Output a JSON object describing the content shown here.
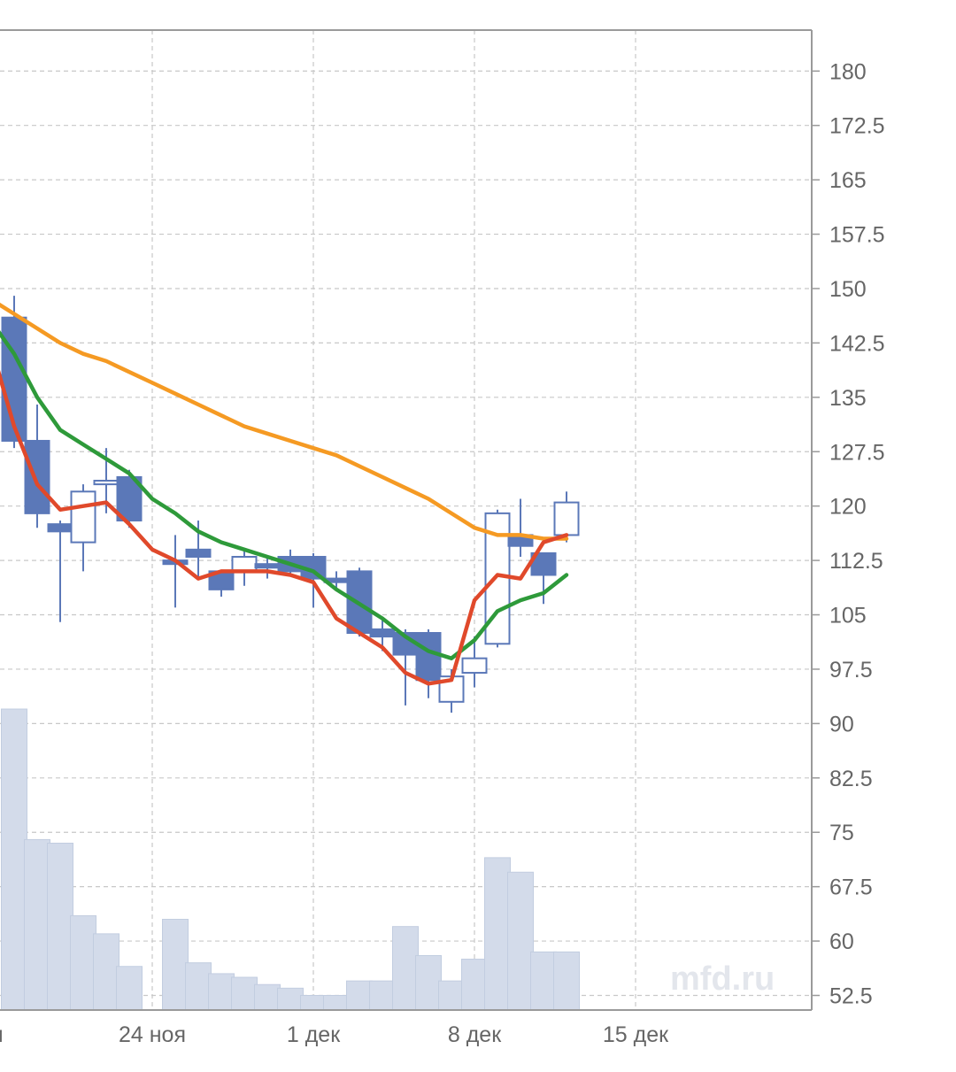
{
  "chart_data": {
    "type": "candlestick",
    "y_ticks": [
      "180",
      "172.5",
      "165",
      "157.5",
      "150",
      "142.5",
      "135",
      "127.5",
      "120",
      "112.5",
      "105",
      "97.5",
      "90",
      "82.5",
      "75",
      "67.5",
      "60",
      "52.5"
    ],
    "y_tick_values": [
      180,
      172.5,
      165,
      157.5,
      150,
      142.5,
      135,
      127.5,
      120,
      112.5,
      105,
      97.5,
      90,
      82.5,
      75,
      67.5,
      60,
      52.5
    ],
    "ylim": [
      51,
      186
    ],
    "x_ticks": [
      "оя",
      "24 ноя",
      "1 дек",
      "8 дек",
      "15 дек"
    ],
    "x_tick_days": [
      -7,
      0,
      7,
      14,
      21
    ],
    "grid": true,
    "watermark": "mfd.ru",
    "candles": [
      {
        "day": -6,
        "open": 146,
        "close": 129,
        "high": 149,
        "low": 128
      },
      {
        "day": -5,
        "open": 129,
        "close": 119,
        "high": 134,
        "low": 117
      },
      {
        "day": -4,
        "open": 117.5,
        "close": 116.5,
        "high": 118,
        "low": 104
      },
      {
        "day": -3,
        "open": 115,
        "close": 122,
        "high": 123,
        "low": 111
      },
      {
        "day": -2,
        "open": 123,
        "close": 123.5,
        "high": 128,
        "low": 119
      },
      {
        "day": -1,
        "open": 124,
        "close": 118,
        "high": 125,
        "low": 117
      },
      {
        "day": 1,
        "open": 112.5,
        "close": 112,
        "high": 116,
        "low": 106
      },
      {
        "day": 2,
        "open": 114,
        "close": 113,
        "high": 118,
        "low": 110
      },
      {
        "day": 3,
        "open": 111,
        "close": 108.5,
        "high": 111,
        "low": 107.5
      },
      {
        "day": 4,
        "open": 111,
        "close": 113,
        "high": 114,
        "low": 109
      },
      {
        "day": 5,
        "open": 112,
        "close": 111.5,
        "high": 113,
        "low": 110
      },
      {
        "day": 6,
        "open": 113,
        "close": 111,
        "high": 114,
        "low": 110.5
      },
      {
        "day": 7,
        "open": 113,
        "close": 110,
        "high": 113.5,
        "low": 106
      },
      {
        "day": 8,
        "open": 110,
        "close": 109.5,
        "high": 111,
        "low": 108.5
      },
      {
        "day": 9,
        "open": 111,
        "close": 102.5,
        "high": 111.5,
        "low": 102
      },
      {
        "day": 10,
        "open": 103,
        "close": 102,
        "high": 104.5,
        "low": 100
      },
      {
        "day": 11,
        "open": 102.5,
        "close": 99.5,
        "high": 103,
        "low": 92.5
      },
      {
        "day": 12,
        "open": 102.5,
        "close": 96,
        "high": 103,
        "low": 93.5
      },
      {
        "day": 13,
        "open": 93,
        "close": 96.5,
        "high": 97.5,
        "low": 91.5
      },
      {
        "day": 14,
        "open": 97,
        "close": 99,
        "high": 102,
        "low": 95
      },
      {
        "day": 15,
        "open": 101,
        "close": 119,
        "high": 119.5,
        "low": 100.5
      },
      {
        "day": 16,
        "open": 116,
        "close": 114.5,
        "high": 121,
        "low": 113
      },
      {
        "day": 17,
        "open": 113.5,
        "close": 110.5,
        "high": 113.5,
        "low": 106.5
      },
      {
        "day": 18,
        "open": 116,
        "close": 120.5,
        "high": 122,
        "low": 115
      }
    ],
    "volume": [
      {
        "day": -6,
        "value": 92
      },
      {
        "day": -5,
        "value": 74
      },
      {
        "day": -4,
        "value": 73.5
      },
      {
        "day": -3,
        "value": 63.5
      },
      {
        "day": -2,
        "value": 61
      },
      {
        "day": -1,
        "value": 56.5
      },
      {
        "day": 1,
        "value": 63
      },
      {
        "day": 2,
        "value": 57
      },
      {
        "day": 3,
        "value": 55.5
      },
      {
        "day": 4,
        "value": 55
      },
      {
        "day": 5,
        "value": 54
      },
      {
        "day": 6,
        "value": 53.5
      },
      {
        "day": 7,
        "value": 52.5
      },
      {
        "day": 8,
        "value": 52.5
      },
      {
        "day": 9,
        "value": 54.5
      },
      {
        "day": 10,
        "value": 54.5
      },
      {
        "day": 11,
        "value": 62
      },
      {
        "day": 12,
        "value": 58
      },
      {
        "day": 13,
        "value": 54.5
      },
      {
        "day": 14,
        "value": 57.5
      },
      {
        "day": 15,
        "value": 71.5
      },
      {
        "day": 16,
        "value": 69.5
      },
      {
        "day": 17,
        "value": 58.5
      },
      {
        "day": 18,
        "value": 58.5
      }
    ],
    "series": [
      {
        "color": "#f59a23",
        "points": [
          [
            -7,
            148.5
          ],
          [
            -6,
            146.5
          ],
          [
            -5,
            144.5
          ],
          [
            -4,
            142.5
          ],
          [
            -3,
            141
          ],
          [
            -2,
            140
          ],
          [
            -1,
            138.5
          ],
          [
            0,
            137
          ],
          [
            1,
            135.5
          ],
          [
            2,
            134
          ],
          [
            3,
            132.5
          ],
          [
            4,
            131
          ],
          [
            5,
            130
          ],
          [
            6,
            129
          ],
          [
            7,
            128
          ],
          [
            8,
            127
          ],
          [
            9,
            125.5
          ],
          [
            10,
            124
          ],
          [
            11,
            122.5
          ],
          [
            12,
            121
          ],
          [
            13,
            119
          ],
          [
            14,
            117
          ],
          [
            15,
            116
          ],
          [
            16,
            116
          ],
          [
            17,
            115.5
          ],
          [
            18,
            115.5
          ]
        ]
      },
      {
        "color": "#2e9a3a",
        "points": [
          [
            -7,
            145.5
          ],
          [
            -6,
            141
          ],
          [
            -5,
            135
          ],
          [
            -4,
            130.5
          ],
          [
            -3,
            128.5
          ],
          [
            -2,
            126.5
          ],
          [
            -1,
            124.5
          ],
          [
            0,
            121
          ],
          [
            1,
            119
          ],
          [
            2,
            116.5
          ],
          [
            3,
            115
          ],
          [
            4,
            114
          ],
          [
            5,
            113
          ],
          [
            6,
            112
          ],
          [
            7,
            111
          ],
          [
            8,
            108.5
          ],
          [
            9,
            106.5
          ],
          [
            10,
            104.5
          ],
          [
            11,
            102
          ],
          [
            12,
            100
          ],
          [
            13,
            99
          ],
          [
            14,
            101.5
          ],
          [
            15,
            105.5
          ],
          [
            16,
            107
          ],
          [
            17,
            108
          ],
          [
            18,
            110.5
          ]
        ]
      },
      {
        "color": "#e0492b",
        "points": [
          [
            -7,
            142
          ],
          [
            -6,
            131
          ],
          [
            -5,
            123
          ],
          [
            -4,
            119.5
          ],
          [
            -3,
            120
          ],
          [
            -2,
            120.5
          ],
          [
            -1,
            117.5
          ],
          [
            0,
            114
          ],
          [
            1,
            112.5
          ],
          [
            2,
            110
          ],
          [
            3,
            111
          ],
          [
            4,
            111
          ],
          [
            5,
            111
          ],
          [
            6,
            110.5
          ],
          [
            7,
            109.5
          ],
          [
            8,
            104.5
          ],
          [
            9,
            102.5
          ],
          [
            10,
            100.5
          ],
          [
            11,
            97
          ],
          [
            12,
            95.5
          ],
          [
            13,
            96
          ],
          [
            14,
            107
          ],
          [
            15,
            110.5
          ],
          [
            16,
            110
          ],
          [
            17,
            115
          ],
          [
            18,
            116
          ]
        ]
      }
    ]
  }
}
